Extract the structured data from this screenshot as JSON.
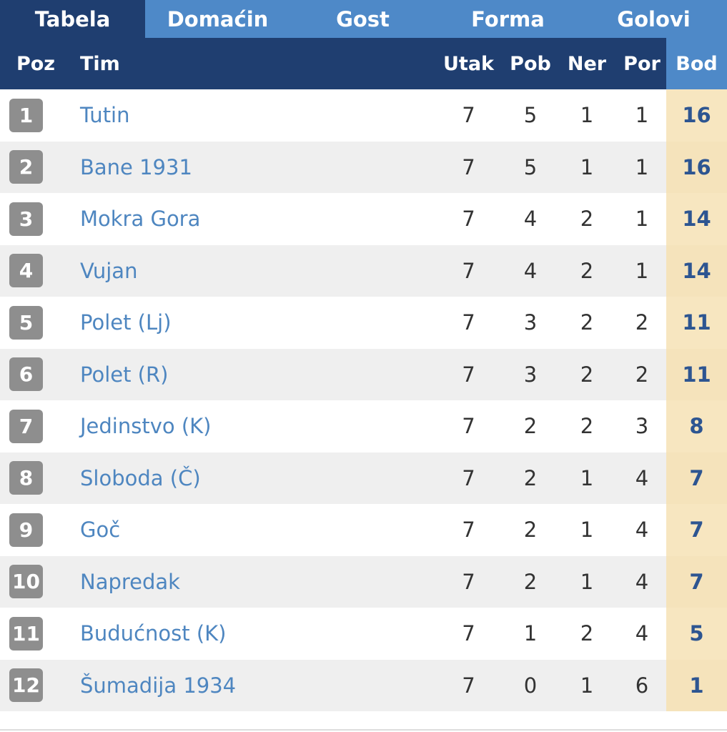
{
  "tabs": [
    {
      "label": "Tabela",
      "active": true
    },
    {
      "label": "Domaćin",
      "active": false
    },
    {
      "label": "Gost",
      "active": false
    },
    {
      "label": "Forma",
      "active": false
    },
    {
      "label": "Golovi",
      "active": false
    }
  ],
  "table": {
    "headers": {
      "poz": "Poz",
      "tim": "Tim",
      "utak": "Utak",
      "pob": "Pob",
      "ner": "Ner",
      "por": "Por",
      "bod": "Bod"
    },
    "rows": [
      {
        "poz": "1",
        "tim": "Tutin",
        "utak": "7",
        "pob": "5",
        "ner": "1",
        "por": "1",
        "bod": "16"
      },
      {
        "poz": "2",
        "tim": "Bane 1931",
        "utak": "7",
        "pob": "5",
        "ner": "1",
        "por": "1",
        "bod": "16"
      },
      {
        "poz": "3",
        "tim": "Mokra Gora",
        "utak": "7",
        "pob": "4",
        "ner": "2",
        "por": "1",
        "bod": "14"
      },
      {
        "poz": "4",
        "tim": "Vujan",
        "utak": "7",
        "pob": "4",
        "ner": "2",
        "por": "1",
        "bod": "14"
      },
      {
        "poz": "5",
        "tim": "Polet (Lj)",
        "utak": "7",
        "pob": "3",
        "ner": "2",
        "por": "2",
        "bod": "11"
      },
      {
        "poz": "6",
        "tim": "Polet (R)",
        "utak": "7",
        "pob": "3",
        "ner": "2",
        "por": "2",
        "bod": "11"
      },
      {
        "poz": "7",
        "tim": "Jedinstvo (K)",
        "utak": "7",
        "pob": "2",
        "ner": "2",
        "por": "3",
        "bod": "8"
      },
      {
        "poz": "8",
        "tim": "Sloboda (Č)",
        "utak": "7",
        "pob": "2",
        "ner": "1",
        "por": "4",
        "bod": "7"
      },
      {
        "poz": "9",
        "tim": "Goč",
        "utak": "7",
        "pob": "2",
        "ner": "1",
        "por": "4",
        "bod": "7"
      },
      {
        "poz": "10",
        "tim": "Napredak",
        "utak": "7",
        "pob": "2",
        "ner": "1",
        "por": "4",
        "bod": "7"
      },
      {
        "poz": "11",
        "tim": "Budućnost (K)",
        "utak": "7",
        "pob": "1",
        "ner": "2",
        "por": "4",
        "bod": "5"
      },
      {
        "poz": "12",
        "tim": "Šumadija 1934",
        "utak": "7",
        "pob": "0",
        "ner": "1",
        "por": "6",
        "bod": "1"
      }
    ]
  },
  "colors": {
    "header_dark": "#1f3e70",
    "header_light": "#4e89c8",
    "team_link": "#4e86c0",
    "points_bg": "#f7e6c0",
    "points_text": "#2d5591",
    "badge_bg": "#8e8e8e"
  }
}
